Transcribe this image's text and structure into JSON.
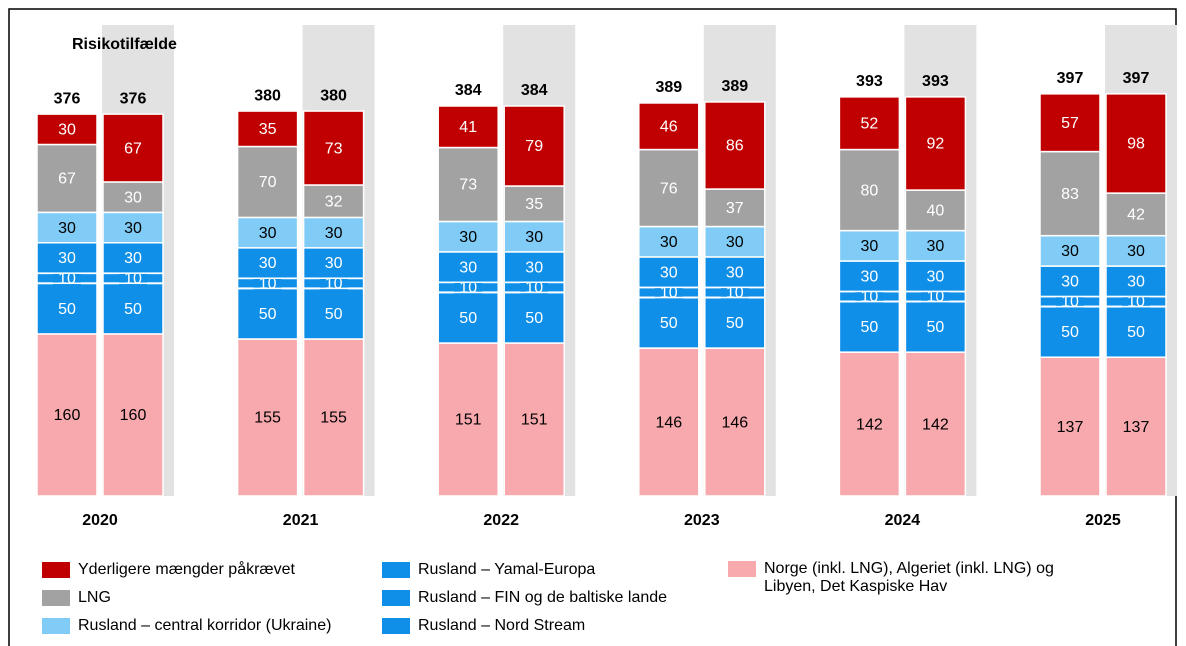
{
  "chart_data": {
    "type": "stacked-bar",
    "annotation": "Risikotilfælde",
    "categories": [
      "2020",
      null,
      "2021",
      null,
      "2022",
      null,
      "2023",
      null,
      "2024",
      null,
      "2025",
      null
    ],
    "totals": [
      376,
      376,
      380,
      380,
      384,
      384,
      389,
      389,
      393,
      393,
      397,
      397
    ],
    "series": [
      {
        "name": "Norge (inkl. LNG), Algeriet (inkl. LNG) og Libyen, Det Kaspiske Hav",
        "color": "#f7a9ae",
        "values": [
          160,
          160,
          155,
          155,
          151,
          151,
          146,
          146,
          142,
          142,
          137,
          137
        ]
      },
      {
        "name": "Rusland – Nord Stream",
        "color": "#0f8fe8",
        "values": [
          50,
          50,
          50,
          50,
          50,
          50,
          50,
          50,
          50,
          50,
          50,
          50
        ]
      },
      {
        "name": "Rusland – FIN og de baltiske lande",
        "color": "#0f8fe8",
        "values": [
          10,
          10,
          10,
          10,
          10,
          10,
          10,
          10,
          10,
          10,
          10,
          10
        ]
      },
      {
        "name": "Rusland – Yamal-Europa",
        "color": "#0f8fe8",
        "values": [
          30,
          30,
          30,
          30,
          30,
          30,
          30,
          30,
          30,
          30,
          30,
          30
        ]
      },
      {
        "name": "Rusland – central korridor (Ukraine)",
        "color": "#80ccf6",
        "values": [
          30,
          30,
          30,
          30,
          30,
          30,
          30,
          30,
          30,
          30,
          30,
          30
        ]
      },
      {
        "name": "LNG",
        "color": "#a2a2a2",
        "values": [
          67,
          30,
          70,
          32,
          73,
          35,
          76,
          37,
          80,
          40,
          83,
          42
        ]
      },
      {
        "name": "Yderligere mængder påkrævet",
        "color": "#c00000",
        "values": [
          30,
          67,
          35,
          73,
          41,
          79,
          46,
          86,
          52,
          92,
          57,
          98
        ]
      }
    ]
  }
}
